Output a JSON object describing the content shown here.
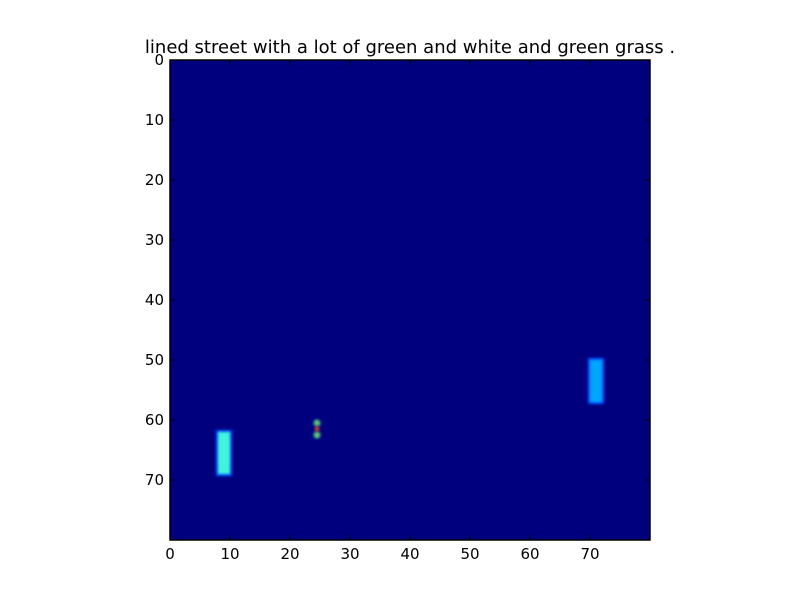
{
  "chart_data": {
    "type": "heatmap",
    "title": "lined street with a lot of green and white and green grass .",
    "xlabel": "",
    "ylabel": "",
    "xlim": [
      0,
      80
    ],
    "ylim": [
      80,
      0
    ],
    "y_axis_inverted": true,
    "grid": false,
    "legend": "none",
    "x_ticks": [
      0,
      10,
      20,
      30,
      40,
      50,
      60,
      70
    ],
    "y_ticks": [
      0,
      10,
      20,
      30,
      40,
      50,
      60,
      70
    ],
    "background_value": 0,
    "colormap": "jet",
    "colors": {
      "background": "#00007f",
      "bar_left": "#3ff5d9",
      "bar_right": "#00a6ff",
      "dot_center": "#c94a2d",
      "dot_edge": "#59c27a",
      "frame": "#000000"
    },
    "features": [
      {
        "shape": "bar",
        "x": [
          8,
          10
        ],
        "y": [
          62,
          69
        ],
        "color": "bar_left"
      },
      {
        "shape": "dots",
        "x": 24,
        "y": [
          60,
          62
        ],
        "color": "dot_edge"
      },
      {
        "shape": "bar",
        "x": [
          70,
          72
        ],
        "y": [
          50,
          57
        ],
        "color": "bar_right"
      }
    ]
  }
}
